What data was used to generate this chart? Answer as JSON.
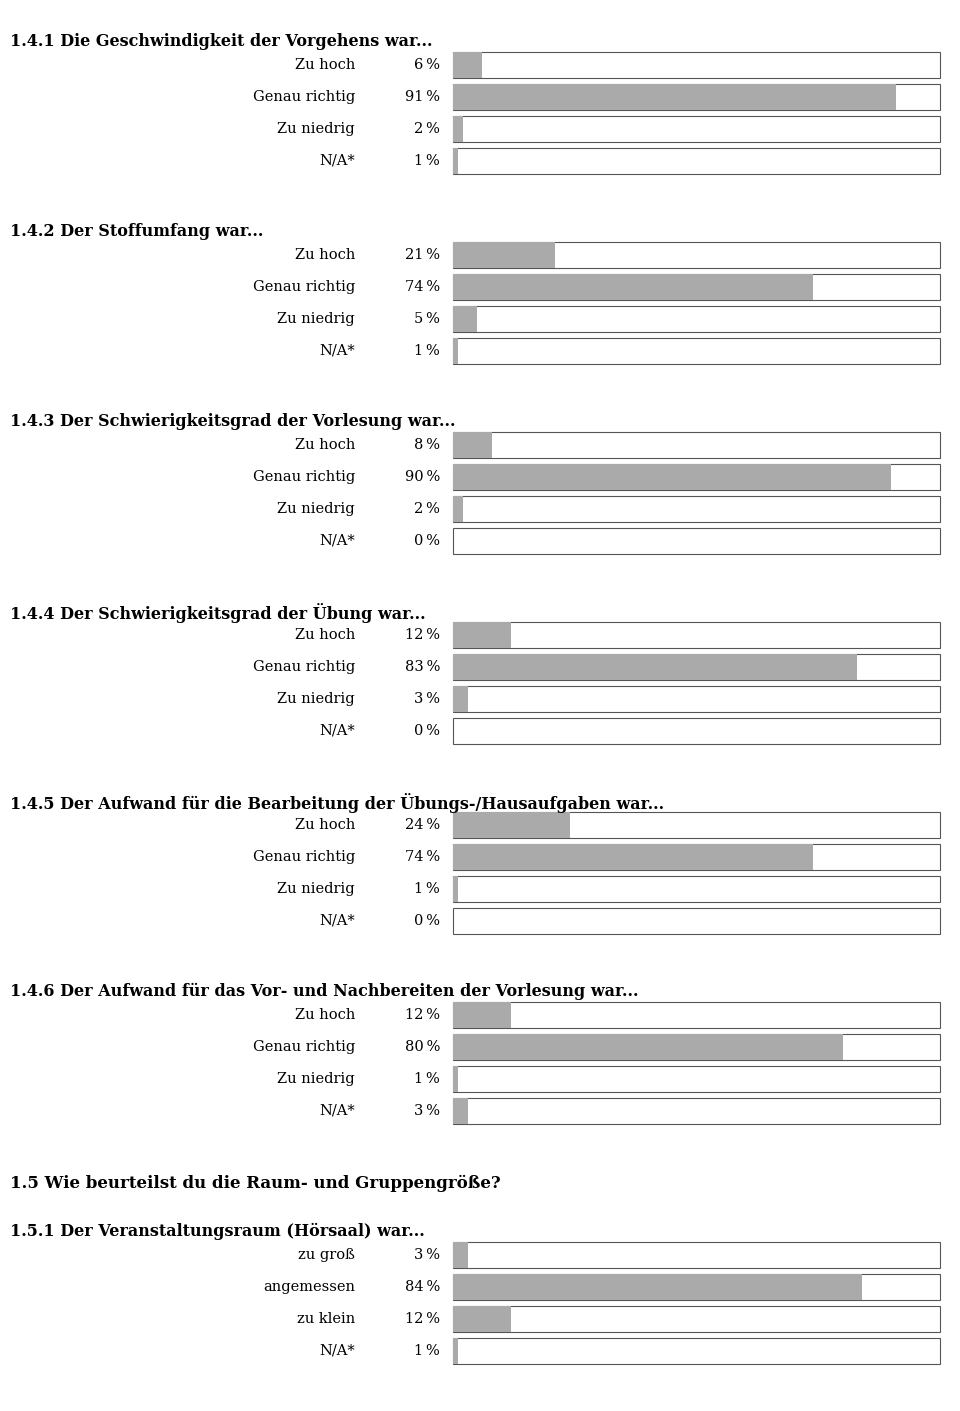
{
  "sections": [
    {
      "title": "1.4.1 Die Geschwindigkeit der Vorgehens war...",
      "categories": [
        "Zu hoch",
        "Genau richtig",
        "Zu niedrig",
        "N/A*"
      ],
      "values": [
        6,
        91,
        2,
        1
      ]
    },
    {
      "title": "1.4.2 Der Stoffumfang war...",
      "categories": [
        "Zu hoch",
        "Genau richtig",
        "Zu niedrig",
        "N/A*"
      ],
      "values": [
        21,
        74,
        5,
        1
      ]
    },
    {
      "title": "1.4.3 Der Schwierigkeitsgrad der Vorlesung war...",
      "categories": [
        "Zu hoch",
        "Genau richtig",
        "Zu niedrig",
        "N/A*"
      ],
      "values": [
        8,
        90,
        2,
        0
      ]
    },
    {
      "title": "1.4.4 Der Schwierigkeitsgrad der Übung war...",
      "categories": [
        "Zu hoch",
        "Genau richtig",
        "Zu niedrig",
        "N/A*"
      ],
      "values": [
        12,
        83,
        3,
        0
      ]
    },
    {
      "title": "1.4.5 Der Aufwand für die Bearbeitung der Übungs-/Hausaufgaben war...",
      "categories": [
        "Zu hoch",
        "Genau richtig",
        "Zu niedrig",
        "N/A*"
      ],
      "values": [
        24,
        74,
        1,
        0
      ]
    },
    {
      "title": "1.4.6 Der Aufwand für das Vor- und Nachbereiten der Vorlesung war...",
      "categories": [
        "Zu hoch",
        "Genau richtig",
        "Zu niedrig",
        "N/A*"
      ],
      "values": [
        12,
        80,
        1,
        3
      ]
    }
  ],
  "section_header": "1.5 Wie beurteilst du die Raum- und Gruppengröße?",
  "section_151": {
    "title": "1.5.1 Der Veranstaltungsraum (Hörsaal) war...",
    "categories": [
      "zu groß",
      "angemessen",
      "zu klein",
      "N/A*"
    ],
    "values": [
      3,
      84,
      12,
      1
    ]
  },
  "bar_color": "#aaaaaa",
  "bar_edge_color": "#555555",
  "background_color": "#ffffff",
  "label_fontsize": 10.5,
  "title_fontsize": 11.5,
  "header_fontsize": 12,
  "fig_width": 9.6,
  "fig_height": 14.11,
  "dpi": 100
}
